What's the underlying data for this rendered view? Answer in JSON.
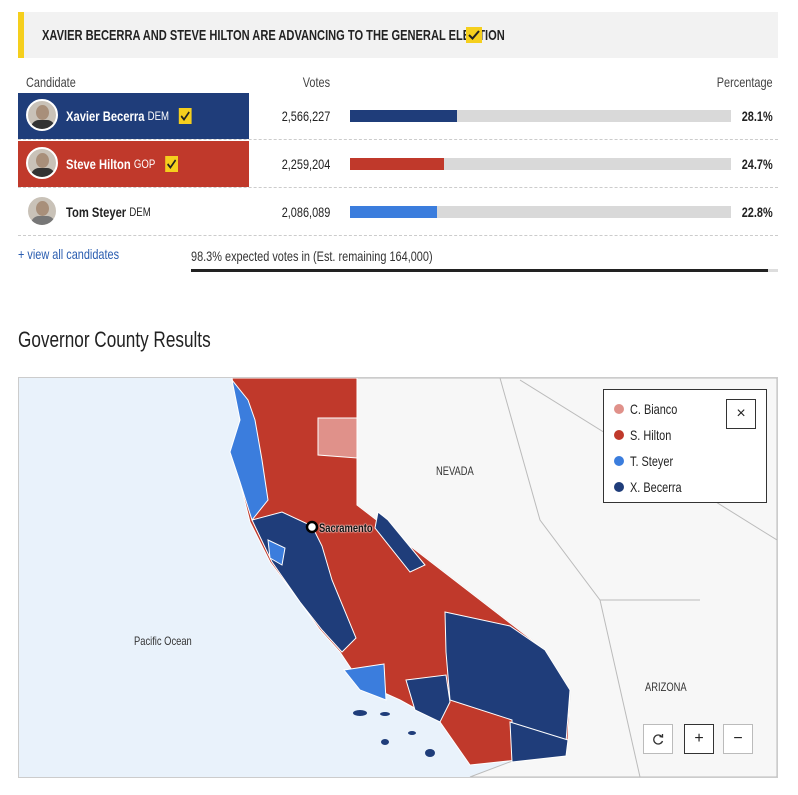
{
  "banner": {
    "text": "XAVIER BECERRA AND STEVE HILTON ARE ADVANCING TO THE GENERAL ELECTION"
  },
  "table": {
    "headers": [
      "Candidate",
      "Votes",
      "Percentage"
    ],
    "rows": [
      {
        "name": "Xavier Becerra",
        "party": "DEM",
        "winner": true,
        "color": "#1f3d7a",
        "votes": "2,566,227",
        "percent": {
          "value": 28.1,
          "label": "28.1%"
        }
      },
      {
        "name": "Steve Hilton",
        "party": "GOP",
        "winner": true,
        "color": "#c0392b",
        "votes": "2,259,204",
        "percent": {
          "value": 24.7,
          "label": "24.7%"
        }
      },
      {
        "name": "Tom Steyer",
        "party": "DEM",
        "winner": false,
        "color": "#3b7ddd",
        "votes": "2,086,089",
        "percent": {
          "value": 22.8,
          "label": "22.8%"
        }
      }
    ]
  },
  "footer": {
    "link": "+ view all candidates",
    "status": "98.3% expected votes in (Est. remaining 164,000)"
  },
  "map": {
    "title": "Governor County Results",
    "state_labels": [
      "NEVADA",
      "ARIZONA"
    ],
    "ocean": "Pacific Ocean",
    "city": "Sacramento",
    "legend": [
      {
        "name": "C. Bianco",
        "color": "#e0918a"
      },
      {
        "name": "S. Hilton",
        "color": "#c0392b"
      },
      {
        "name": "T. Steyer",
        "color": "#3b7ddd"
      },
      {
        "name": "X. Becerra",
        "color": "#1f3d7a"
      }
    ],
    "controls": {
      "close": "×",
      "zoom_in": "+",
      "zoom_out": "−"
    }
  }
}
